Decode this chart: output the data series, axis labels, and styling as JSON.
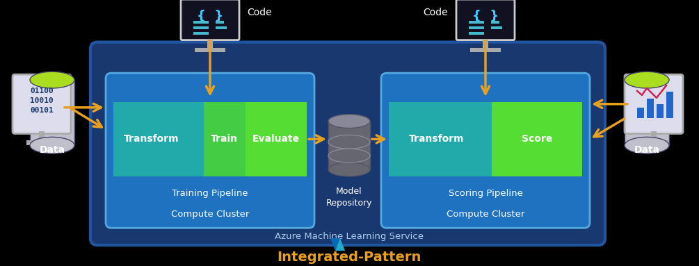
{
  "bg_color": "#000000",
  "title": "Integrated-Pattern",
  "title_color": "#e8a020",
  "title_fontsize": 14,
  "training_pipeline_label": "Training Pipeline",
  "compute_cluster_left": "Compute Cluster",
  "scoring_pipeline_label": "Scoring Pipeline",
  "compute_cluster_right": "Compute Cluster",
  "model_repo_label": "Model\nRepository",
  "azure_label": "Azure Machine Learning Service",
  "transform_left": "Transform",
  "train_label": "Train",
  "evaluate_label": "Evaluate",
  "transform_right": "Transform",
  "score_label": "Score",
  "data_left": "Data",
  "data_right": "Data",
  "code_left": "Code",
  "code_right": "Code",
  "binary_text": "01100\n10010\n00101",
  "arrow_color": "#e8a020",
  "outer_box_fill": "#1a3870",
  "outer_box_edge": "#2255a0",
  "inner_box_fill": "#1e72c0",
  "inner_box_edge": "#55aadd",
  "green_fill": "#44bb44",
  "teal_fill": "#22aaaa",
  "bright_green_fill": "#55dd33",
  "mid_green_fill": "#44cc44",
  "model_cyl_top": "#888898",
  "model_cyl_body": "#666670",
  "data_cyl_top": "#aadd20",
  "data_cyl_body": "#ccccdd",
  "monitor_screen": "#111122",
  "monitor_border": "#cccccc",
  "monitor_stand": "#aaaaaa",
  "tablet_fill": "#ddddee",
  "tablet_border": "#aaaaaa",
  "white": "#ffffff",
  "azure_blue1": "#0a6ab8",
  "azure_blue2": "#22aacc"
}
